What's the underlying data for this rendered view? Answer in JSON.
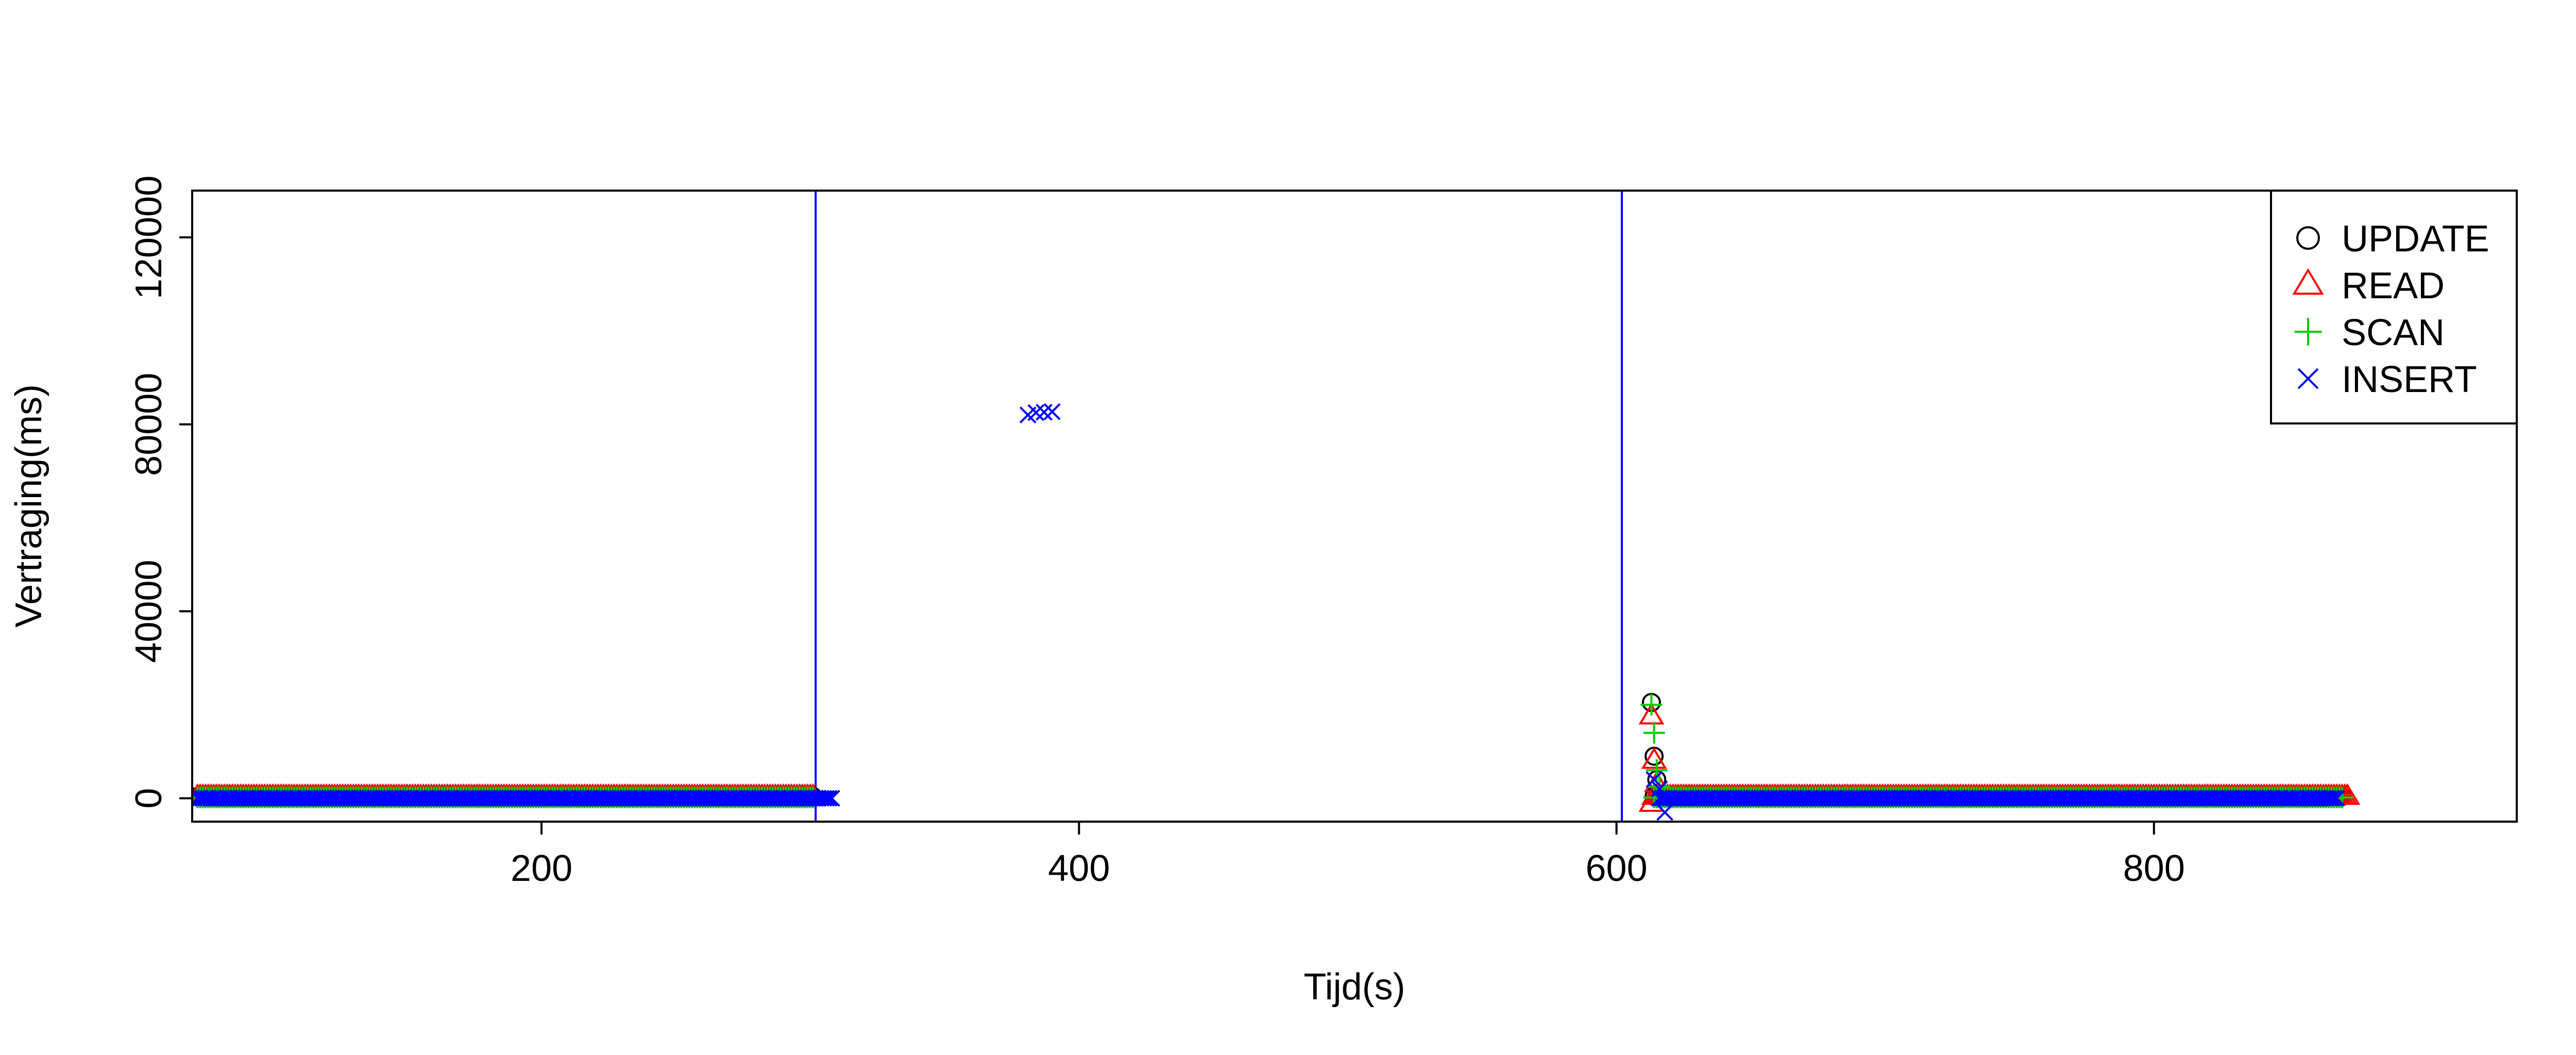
{
  "chart_data": {
    "type": "scatter",
    "xlabel": "Tijd(s)",
    "ylabel": "Vertraging(ms)",
    "xlim": [
      70,
      935
    ],
    "ylim": [
      -5000,
      130000
    ],
    "x_ticks": [
      200,
      400,
      600,
      800
    ],
    "x_tick_labels": [
      "200",
      "400",
      "600",
      "800"
    ],
    "y_ticks": [
      0,
      40000,
      80000,
      120000
    ],
    "y_tick_labels": [
      "0",
      "40000",
      "80000",
      "120000"
    ],
    "grid": false,
    "legend_position": "top-right",
    "vertical_lines": [
      {
        "x": 302,
        "color": "#0000ff"
      },
      {
        "x": 602,
        "color": "#0000ff"
      }
    ],
    "series": [
      {
        "name": "UPDATE",
        "marker": "circle",
        "color": "#000000",
        "segments": [
          {
            "x_start": 72,
            "x_end": 301,
            "step": 1,
            "y": 400
          },
          {
            "x_start": 614,
            "x_end": 870,
            "step": 1,
            "y": 400
          }
        ],
        "points": [
          [
            613,
            20500
          ],
          [
            614,
            9000
          ],
          [
            615,
            4000
          ]
        ]
      },
      {
        "name": "READ",
        "marker": "triangle",
        "color": "#ff0000",
        "segments": [
          {
            "x_start": 72,
            "x_end": 301,
            "step": 1,
            "y": 300
          },
          {
            "x_start": 614,
            "x_end": 872,
            "step": 1,
            "y": 300
          }
        ],
        "points": [
          [
            613,
            17500
          ],
          [
            613,
            -1200
          ],
          [
            614,
            8000
          ],
          [
            615,
            3000
          ]
        ]
      },
      {
        "name": "SCAN",
        "marker": "plus",
        "color": "#00cd00",
        "segments": [
          {
            "x_start": 72,
            "x_end": 301,
            "step": 1,
            "y": 200
          },
          {
            "x_start": 614,
            "x_end": 870,
            "step": 1,
            "y": 200
          }
        ],
        "points": [
          [
            613,
            20000
          ],
          [
            614,
            14000
          ],
          [
            615,
            6000
          ],
          [
            616,
            2500
          ]
        ]
      },
      {
        "name": "INSERT",
        "marker": "cross",
        "color": "#0000ff",
        "segments": [
          {
            "x_start": 72,
            "x_end": 308,
            "step": 1,
            "y": 0
          },
          {
            "x_start": 616,
            "x_end": 868,
            "step": 1,
            "y": 0
          }
        ],
        "points": [
          [
            381,
            82000
          ],
          [
            384,
            82500
          ],
          [
            387,
            82600
          ],
          [
            390,
            82700
          ],
          [
            614,
            4000
          ],
          [
            616,
            2000
          ],
          [
            618,
            -3000
          ]
        ]
      }
    ]
  }
}
